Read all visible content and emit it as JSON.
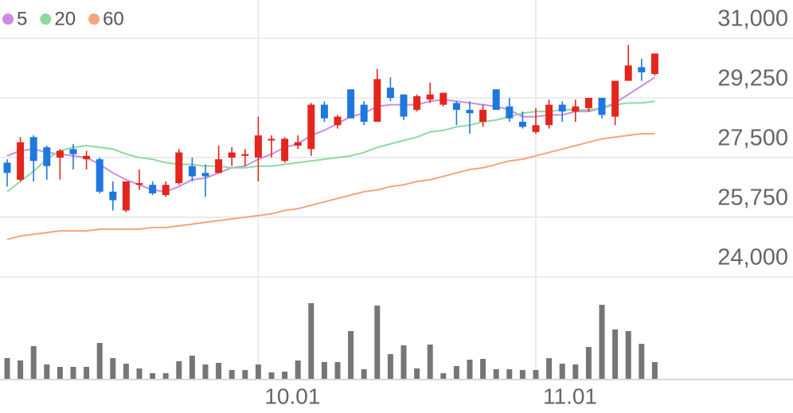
{
  "chart_data": {
    "type": "candlestick",
    "categories": [
      null,
      null,
      null,
      null,
      null,
      null,
      null,
      null,
      null,
      null,
      null,
      null,
      null,
      null,
      null,
      null,
      null,
      null,
      null,
      "10.01",
      null,
      null,
      null,
      null,
      null,
      null,
      null,
      null,
      null,
      null,
      null,
      null,
      null,
      null,
      null,
      null,
      null,
      null,
      null,
      null,
      "11.01",
      null,
      null,
      null,
      null,
      null,
      null,
      null,
      null,
      null
    ],
    "open": [
      27350,
      26850,
      28100,
      27800,
      27500,
      27750,
      27450,
      27450,
      26500,
      25950,
      26700,
      26700,
      26400,
      26750,
      27250,
      27050,
      27050,
      27500,
      27550,
      27500,
      28000,
      27400,
      27850,
      27750,
      29050,
      28450,
      29500,
      29050,
      28550,
      29550,
      29350,
      28900,
      29200,
      29050,
      29100,
      28900,
      28550,
      29500,
      29000,
      28550,
      28250,
      28450,
      29050,
      28850,
      28950,
      29250,
      28700,
      29750,
      30150,
      29950
    ],
    "high": [
      27450,
      28100,
      28150,
      27850,
      27750,
      27900,
      27700,
      27500,
      26800,
      26800,
      27150,
      26800,
      26800,
      27750,
      27500,
      27300,
      27850,
      27800,
      27750,
      28700,
      28150,
      28100,
      28150,
      29100,
      29150,
      28750,
      29500,
      29150,
      30100,
      29850,
      29350,
      29350,
      29700,
      29400,
      29150,
      29150,
      29050,
      29500,
      29250,
      28850,
      28950,
      29200,
      29150,
      29200,
      29250,
      29250,
      29750,
      30800,
      30400,
      30550
    ],
    "low": [
      26650,
      26800,
      26800,
      26850,
      26850,
      27150,
      27150,
      26450,
      25950,
      25900,
      26550,
      26400,
      26350,
      26700,
      26800,
      26350,
      27050,
      27250,
      27250,
      26800,
      27500,
      27350,
      27750,
      27550,
      28550,
      28350,
      28650,
      28450,
      28550,
      29150,
      28600,
      28850,
      29100,
      29000,
      28450,
      28200,
      28400,
      28900,
      28550,
      28350,
      28200,
      28350,
      28550,
      28550,
      28850,
      28650,
      28450,
      29750,
      29750,
      29900
    ],
    "close": [
      27050,
      27950,
      27400,
      27250,
      27700,
      27600,
      27550,
      26500,
      26250,
      26800,
      26750,
      26450,
      26700,
      27650,
      26950,
      26950,
      27450,
      27650,
      27600,
      28150,
      28050,
      28050,
      27950,
      29050,
      28650,
      28700,
      28650,
      28550,
      29800,
      29250,
      28700,
      29300,
      29350,
      29400,
      28900,
      28800,
      28900,
      28900,
      28650,
      28400,
      28450,
      29050,
      28850,
      29000,
      29250,
      28750,
      29750,
      30200,
      30000,
      30550
    ],
    "up_color": "#e3261c",
    "down_color": "#1e78de",
    "series": [
      {
        "name": "5",
        "color": "#cc8ce3",
        "values": [
          27550,
          27700,
          27750,
          27650,
          27600,
          27550,
          27500,
          27300,
          27050,
          26850,
          26700,
          26550,
          26500,
          26650,
          26850,
          26900,
          27050,
          27200,
          27250,
          27450,
          27600,
          27800,
          27900,
          28150,
          28300,
          28500,
          28700,
          28800,
          29000,
          29050,
          29050,
          29050,
          29150,
          29200,
          29150,
          29100,
          29050,
          29000,
          28900,
          28700,
          28700,
          28750,
          28750,
          28850,
          28850,
          28950,
          29100,
          29350,
          29600,
          29850
        ]
      },
      {
        "name": "20",
        "color": "#8ed9a2",
        "values": [
          26500,
          26800,
          27100,
          27450,
          27700,
          27800,
          27850,
          27800,
          27750,
          27600,
          27500,
          27450,
          27350,
          27300,
          27300,
          27250,
          27250,
          27200,
          27200,
          27250,
          27250,
          27300,
          27350,
          27400,
          27450,
          27500,
          27550,
          27650,
          27800,
          27900,
          28000,
          28100,
          28250,
          28300,
          28400,
          28450,
          28550,
          28600,
          28700,
          28800,
          28850,
          28850,
          28900,
          28900,
          28900,
          28950,
          29050,
          29100,
          29100,
          29150
        ]
      },
      {
        "name": "60",
        "color": "#f5a47d",
        "values": [
          25100,
          25200,
          25250,
          25300,
          25350,
          25350,
          25350,
          25400,
          25400,
          25400,
          25400,
          25450,
          25450,
          25500,
          25550,
          25600,
          25650,
          25700,
          25750,
          25800,
          25850,
          25950,
          26000,
          26100,
          26200,
          26300,
          26400,
          26500,
          26550,
          26650,
          26700,
          26800,
          26850,
          26950,
          27050,
          27150,
          27200,
          27300,
          27400,
          27450,
          27550,
          27650,
          27750,
          27850,
          27950,
          28050,
          28100,
          28150,
          28200,
          28200
        ]
      }
    ],
    "volume": {
      "color": "#767676",
      "ylim": [
        0,
        100
      ],
      "values": [
        26,
        23,
        41,
        18,
        15,
        15,
        15,
        45,
        26,
        19,
        13,
        7,
        7,
        22,
        29,
        18,
        20,
        11,
        11,
        18,
        8,
        9,
        23,
        95,
        21,
        21,
        60,
        12,
        92,
        31,
        42,
        13,
        43,
        7,
        16,
        24,
        25,
        12,
        12,
        11,
        11,
        26,
        19,
        18,
        40,
        93,
        62,
        60,
        44,
        21
      ]
    },
    "ylim": [
      24000,
      31000
    ],
    "yticks": [
      {
        "value": 24000,
        "label": "24,000"
      },
      {
        "value": 25750,
        "label": "25,750"
      },
      {
        "value": 27500,
        "label": "27,500"
      },
      {
        "value": 29250,
        "label": "29,250"
      },
      {
        "value": 31000,
        "label": "31,000"
      }
    ],
    "grid": true
  }
}
